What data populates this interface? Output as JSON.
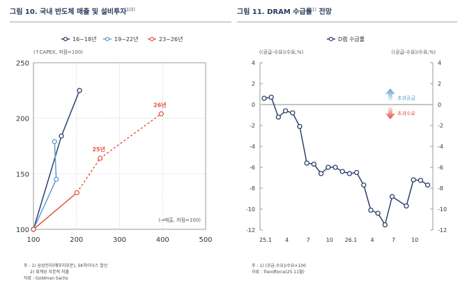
{
  "left": {
    "title": "그림 10. 국내 반도체 매출 및 설비투자",
    "title_sup": "1)2)",
    "notes": [
      "주 : 1) 삼성전자(메모리부문), SK하이닉스 합산",
      "2) 회계상 자본적 지출",
      "자료 : Goldman Sachs"
    ]
  },
  "right": {
    "title": "그림 11. DRAM 수급률",
    "title_sup": "1)",
    "title_suffix": " 전망",
    "notes": [
      "주 : 1) (공급-수요)/수요×100",
      "자료 : Trendforce(25.11월)"
    ]
  },
  "chart_data": [
    {
      "type": "scatter",
      "ylabel": "(↑CAPEX, 저점=100)",
      "xlabel": "(→매출, 저점=100)",
      "xlim": [
        100,
        500
      ],
      "ylim": [
        100,
        250
      ],
      "xticks": [
        "100",
        "200",
        "300",
        "400",
        "500"
      ],
      "yticks": [
        "100",
        "150",
        "200",
        "250"
      ],
      "grid": true,
      "legend": "top",
      "series": [
        {
          "name": "16~18년",
          "color": "#2b3f6b",
          "points": [
            [
              100,
              100
            ],
            [
              165,
              184
            ],
            [
              207,
              225
            ]
          ],
          "dashed_from": null
        },
        {
          "name": "19~22년",
          "color": "#5b9bd5",
          "points": [
            [
              100,
              100
            ],
            [
              153,
              145
            ],
            [
              149,
              179
            ]
          ],
          "dashed_from": null
        },
        {
          "name": "23~26년",
          "color": "#e0573e",
          "points": [
            [
              100,
              100
            ],
            [
              201,
              133
            ],
            [
              255,
              164
            ],
            [
              397,
              204
            ]
          ],
          "dashed_from": 1,
          "point_labels": [
            null,
            null,
            "25년",
            "26년"
          ]
        }
      ]
    },
    {
      "type": "line",
      "series": [
        {
          "name": "D램 수급률",
          "color": "#2b3f6b",
          "values": [
            0.6,
            0.7,
            -1.2,
            -0.6,
            -0.8,
            -2.1,
            -5.6,
            -5.7,
            -6.6,
            -6.0,
            -6.0,
            -6.4,
            -6.6,
            -6.5,
            -7.7,
            -10.1,
            -10.4,
            -11.5,
            -8.8,
            null,
            -9.7,
            -7.2,
            -7.25,
            -7.7
          ]
        }
      ],
      "x_start": "25.1",
      "xticks": [
        {
          "i": 0,
          "label": "25.1"
        },
        {
          "i": 3,
          "label": "4"
        },
        {
          "i": 6,
          "label": "7"
        },
        {
          "i": 9,
          "label": "10"
        },
        {
          "i": 12,
          "label": "26.1"
        },
        {
          "i": 15,
          "label": "4"
        },
        {
          "i": 18,
          "label": "7"
        },
        {
          "i": 21,
          "label": "10"
        }
      ],
      "ylim": [
        -12,
        4
      ],
      "yticks": [
        4,
        2,
        0,
        -2,
        -4,
        -6,
        -8,
        -10,
        -12
      ],
      "ylabel_left": "((공급-수요)/수요,%)",
      "ylabel_right": "((공급-수요)/수요,%)",
      "legend": "top",
      "annotations": [
        {
          "text": "초과공급",
          "color": "#5b9bd5"
        },
        {
          "text": "초과수요",
          "color": "#e0473e"
        }
      ]
    }
  ]
}
